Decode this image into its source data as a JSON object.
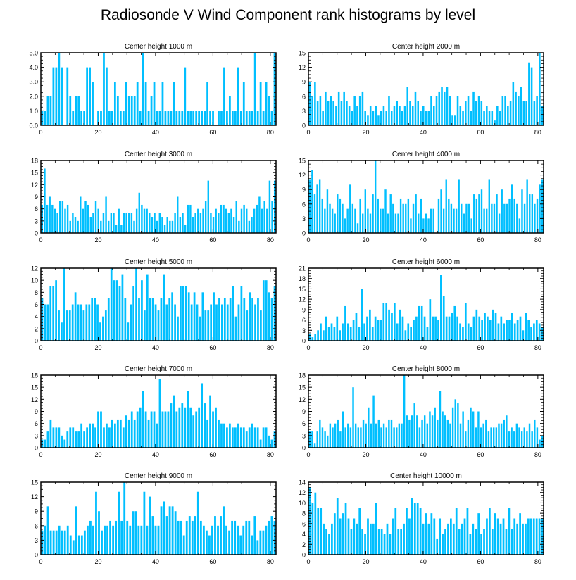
{
  "title": "Radiosonde V Wind Component rank histograms by level",
  "bar_color": "#00BFFF",
  "chart_data": [
    {
      "type": "bar",
      "title": "Center height 1000 m",
      "xlim": [
        0,
        82
      ],
      "ylim": [
        0,
        5
      ],
      "yticks": [
        0.0,
        1.0,
        2.0,
        3.0,
        4.0,
        5.0
      ],
      "ytick_decimals": 1,
      "xticks": [
        0,
        20,
        40,
        60,
        80
      ],
      "values": [
        1,
        1,
        2,
        2,
        4,
        4,
        5,
        4,
        0,
        4,
        2,
        1,
        2,
        2,
        1,
        1,
        4,
        4,
        3,
        0,
        1,
        1,
        5,
        4,
        1,
        1,
        3,
        2,
        1,
        1,
        3,
        2,
        2,
        2,
        3,
        1,
        5,
        3,
        1,
        2,
        3,
        1,
        1,
        3,
        1,
        1,
        1,
        3,
        1,
        1,
        1,
        4,
        1,
        1,
        1,
        1,
        1,
        1,
        1,
        3,
        1,
        1,
        0,
        1,
        1,
        4,
        1,
        2,
        1,
        1,
        4,
        1,
        3,
        1,
        1,
        1,
        5,
        1,
        3,
        1,
        3,
        2,
        1,
        5
      ]
    },
    {
      "type": "bar",
      "title": "Center height 2000 m",
      "xlim": [
        0,
        82
      ],
      "ylim": [
        0,
        15
      ],
      "yticks": [
        0,
        3,
        6,
        9,
        12,
        15
      ],
      "ytick_decimals": 0,
      "xticks": [
        0,
        20,
        40,
        60,
        80
      ],
      "values": [
        9,
        6,
        9,
        5,
        6,
        3,
        7,
        5,
        6,
        5,
        4,
        7,
        5,
        7,
        5,
        4,
        3,
        6,
        4,
        6,
        7,
        3,
        2,
        4,
        3,
        4,
        2,
        3,
        4,
        3,
        6,
        3,
        4,
        5,
        4,
        3,
        4,
        8,
        5,
        4,
        7,
        5,
        3,
        4,
        3,
        3,
        6,
        4,
        6,
        7,
        8,
        7,
        8,
        6,
        2,
        2,
        6,
        4,
        3,
        5,
        6,
        3,
        7,
        5,
        6,
        5,
        3,
        4,
        3,
        3,
        1,
        4,
        3,
        6,
        6,
        4,
        5,
        9,
        7,
        6,
        8,
        5,
        5,
        13,
        12,
        5,
        6,
        15,
        4
      ]
    },
    {
      "type": "bar",
      "title": "Center height 3000 m",
      "xlim": [
        0,
        82
      ],
      "ylim": [
        0,
        18
      ],
      "yticks": [
        0,
        3,
        6,
        9,
        12,
        15,
        18
      ],
      "ytick_decimals": 0,
      "xticks": [
        0,
        20,
        40,
        60,
        80
      ],
      "values": [
        7,
        16,
        7,
        9,
        7,
        6,
        5,
        8,
        8,
        6,
        7,
        3,
        5,
        4,
        3,
        9,
        6,
        8,
        7,
        4,
        5,
        8,
        6,
        3,
        5,
        9,
        3,
        5,
        5,
        2,
        6,
        2,
        5,
        5,
        5,
        5,
        3,
        6,
        10,
        7,
        6,
        6,
        5,
        4,
        5,
        3,
        5,
        4,
        2,
        4,
        3,
        3,
        5,
        9,
        4,
        5,
        2,
        7,
        7,
        4,
        5,
        6,
        5,
        6,
        8,
        13,
        5,
        4,
        6,
        5,
        7,
        7,
        6,
        5,
        6,
        4,
        8,
        3,
        6,
        7,
        6,
        3,
        4,
        6,
        7,
        9,
        6,
        8,
        6,
        13,
        8,
        13
      ]
    },
    {
      "type": "bar",
      "title": "Center height 4000 m",
      "xlim": [
        0,
        82
      ],
      "ylim": [
        0,
        15
      ],
      "yticks": [
        0,
        3,
        6,
        9,
        12,
        15
      ],
      "ytick_decimals": 0,
      "xticks": [
        0,
        20,
        40,
        60,
        80
      ],
      "values": [
        11,
        13,
        8,
        10,
        11,
        7,
        5,
        9,
        6,
        5,
        4,
        8,
        7,
        6,
        3,
        5,
        10,
        6,
        5,
        2,
        7,
        4,
        9,
        5,
        4,
        8,
        15,
        7,
        5,
        5,
        9,
        4,
        8,
        6,
        4,
        4,
        7,
        6,
        6,
        7,
        3,
        6,
        8,
        4,
        7,
        3,
        4,
        3,
        5,
        5,
        0,
        7,
        9,
        5,
        11,
        7,
        6,
        5,
        5,
        11,
        6,
        4,
        6,
        6,
        3,
        8,
        7,
        8,
        9,
        5,
        5,
        11,
        6,
        6,
        8,
        4,
        9,
        6,
        6,
        7,
        10,
        7,
        6,
        3,
        9,
        6,
        11,
        8,
        8,
        6,
        7,
        10,
        11
      ]
    },
    {
      "type": "bar",
      "title": "Center height 5000 m",
      "xlim": [
        0,
        82
      ],
      "ylim": [
        0,
        12
      ],
      "yticks": [
        0,
        2,
        4,
        6,
        8,
        10,
        12
      ],
      "ytick_decimals": 0,
      "xticks": [
        0,
        20,
        40,
        60,
        80
      ],
      "values": [
        7,
        6,
        6,
        9,
        9,
        10,
        5,
        3,
        12,
        5,
        5,
        6,
        8,
        6,
        6,
        5,
        6,
        6,
        7,
        7,
        6,
        3,
        4,
        5,
        7,
        12,
        10,
        10,
        9,
        11,
        7,
        3,
        6,
        9,
        12,
        7,
        10,
        5,
        11,
        7,
        7,
        6,
        5,
        7,
        11,
        6,
        7,
        8,
        6,
        4,
        9,
        9,
        9,
        8,
        6,
        8,
        6,
        4,
        8,
        5,
        5,
        6,
        8,
        6,
        7,
        6,
        7,
        6,
        7,
        9,
        4,
        6,
        9,
        7,
        5,
        8,
        7,
        6,
        7,
        5,
        10,
        10,
        8,
        7,
        9
      ]
    },
    {
      "type": "bar",
      "title": "Center height 6000 m",
      "xlim": [
        0,
        82
      ],
      "ylim": [
        0,
        21
      ],
      "yticks": [
        0,
        3,
        6,
        9,
        12,
        15,
        18,
        21
      ],
      "ytick_decimals": 0,
      "xticks": [
        0,
        20,
        40,
        60,
        80
      ],
      "values": [
        2,
        1,
        2,
        3,
        5,
        3,
        7,
        4,
        5,
        4,
        7,
        3,
        5,
        10,
        5,
        4,
        6,
        8,
        4,
        15,
        5,
        7,
        9,
        4,
        7,
        6,
        6,
        11,
        11,
        9,
        8,
        11,
        5,
        9,
        7,
        3,
        5,
        4,
        6,
        7,
        10,
        10,
        7,
        4,
        12,
        7,
        7,
        6,
        19,
        13,
        7,
        7,
        8,
        10,
        7,
        5,
        4,
        11,
        5,
        4,
        7,
        9,
        7,
        6,
        8,
        7,
        6,
        9,
        8,
        5,
        7,
        5,
        6,
        6,
        8,
        5,
        6,
        7,
        3,
        8,
        6,
        4,
        5,
        6,
        5,
        4
      ]
    },
    {
      "type": "bar",
      "title": "Center height 7000 m",
      "xlim": [
        0,
        82
      ],
      "ylim": [
        0,
        18
      ],
      "yticks": [
        0,
        3,
        6,
        9,
        12,
        15,
        18
      ],
      "ytick_decimals": 0,
      "xticks": [
        0,
        20,
        40,
        60,
        80
      ],
      "values": [
        2,
        2,
        4,
        7,
        5,
        5,
        5,
        3,
        2,
        4,
        5,
        5,
        4,
        4,
        6,
        4,
        5,
        6,
        6,
        5,
        9,
        9,
        5,
        6,
        5,
        7,
        6,
        7,
        7,
        5,
        8,
        7,
        9,
        7,
        9,
        10,
        14,
        9,
        7,
        9,
        9,
        6,
        17,
        9,
        9,
        9,
        11,
        13,
        9,
        10,
        11,
        10,
        14,
        10,
        8,
        9,
        10,
        16,
        11,
        7,
        13,
        9,
        10,
        7,
        6,
        6,
        5,
        6,
        5,
        5,
        6,
        5,
        5,
        4,
        5,
        6,
        5,
        5,
        2,
        5,
        5,
        3,
        2,
        4
      ]
    },
    {
      "type": "bar",
      "title": "Center height 8000 m",
      "xlim": [
        0,
        82
      ],
      "ylim": [
        0,
        18
      ],
      "yticks": [
        0,
        3,
        6,
        9,
        12,
        15,
        18
      ],
      "ytick_decimals": 0,
      "xticks": [
        0,
        20,
        40,
        60,
        80
      ],
      "values": [
        4,
        4,
        1,
        4,
        7,
        5,
        4,
        3,
        6,
        5,
        6,
        7,
        4,
        9,
        5,
        6,
        5,
        15,
        6,
        5,
        5,
        7,
        6,
        10,
        6,
        13,
        6,
        7,
        5,
        6,
        5,
        7,
        7,
        5,
        5,
        6,
        6,
        18,
        8,
        7,
        8,
        11,
        8,
        5,
        7,
        8,
        6,
        9,
        8,
        10,
        7,
        14,
        9,
        8,
        7,
        6,
        10,
        12,
        11,
        6,
        9,
        4,
        7,
        10,
        9,
        5,
        9,
        5,
        6,
        7,
        4,
        5,
        5,
        5,
        6,
        6,
        7,
        8,
        4,
        5,
        4,
        6,
        5,
        4,
        5,
        4,
        6,
        4,
        7,
        5,
        2,
        3
      ]
    },
    {
      "type": "bar",
      "title": "Center height 9000 m",
      "xlim": [
        0,
        82
      ],
      "ylim": [
        0,
        15
      ],
      "yticks": [
        0,
        3,
        6,
        9,
        12,
        15
      ],
      "ytick_decimals": 0,
      "xticks": [
        0,
        20,
        40,
        60,
        80
      ],
      "values": [
        5,
        6,
        10,
        5,
        5,
        5,
        6,
        5,
        5,
        6,
        4,
        3,
        10,
        4,
        4,
        5,
        6,
        7,
        6,
        13,
        9,
        5,
        6,
        6,
        7,
        6,
        7,
        13,
        7,
        15,
        7,
        6,
        9,
        9,
        6,
        6,
        13,
        6,
        12,
        8,
        6,
        6,
        10,
        11,
        8,
        10,
        10,
        9,
        7,
        7,
        4,
        7,
        8,
        7,
        8,
        13,
        7,
        6,
        5,
        4,
        6,
        8,
        6,
        8,
        10,
        6,
        5,
        7,
        7,
        6,
        4,
        6,
        7,
        7,
        4,
        8,
        3,
        5,
        5,
        6,
        7,
        8,
        7
      ]
    },
    {
      "type": "bar",
      "title": "Center height 10000 m",
      "xlim": [
        0,
        82
      ],
      "ylim": [
        0,
        14
      ],
      "yticks": [
        0,
        2,
        4,
        6,
        8,
        10,
        12,
        14
      ],
      "ytick_decimals": 0,
      "xticks": [
        0,
        20,
        40,
        60,
        80
      ],
      "values": [
        13,
        10,
        12,
        9,
        9,
        6,
        5,
        4,
        6,
        8,
        11,
        7,
        8,
        10,
        7,
        5,
        7,
        6,
        9,
        5,
        4,
        7,
        6,
        6,
        10,
        5,
        5,
        4,
        6,
        4,
        7,
        9,
        5,
        5,
        6,
        9,
        7,
        11,
        10,
        10,
        9,
        6,
        8,
        6,
        8,
        7,
        3,
        7,
        4,
        5,
        6,
        7,
        6,
        9,
        5,
        6,
        7,
        9,
        4,
        6,
        5,
        8,
        4,
        5,
        7,
        9,
        5,
        8,
        7,
        6,
        7,
        5,
        9,
        5,
        7,
        6,
        8,
        6,
        6,
        7,
        7,
        7,
        7,
        7,
        7
      ]
    }
  ]
}
